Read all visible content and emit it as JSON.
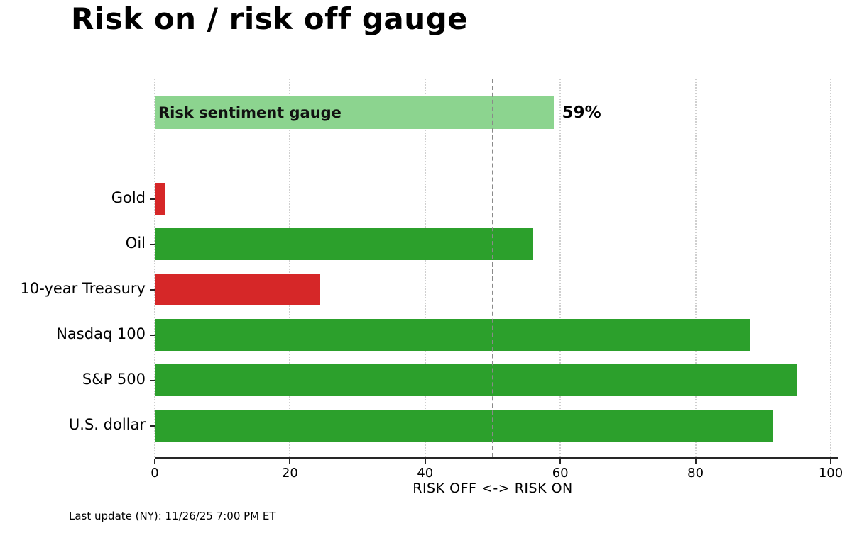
{
  "footer": {
    "text": "Last update (NY): 11/26/25 7:00 PM ET"
  },
  "colors": {
    "risk_on_green": "#2ca02c",
    "risk_off_red": "#d62728",
    "gauge_light_green": "#8cd48f",
    "grid": "#cfcfcf",
    "reference_line": "#8a8a8a",
    "axis": "#262626"
  },
  "chart_data": {
    "type": "bar",
    "orientation": "horizontal",
    "title": "Risk on / risk off gauge",
    "xlabel": "RISK OFF <-> RISK ON",
    "xlim": [
      0,
      100
    ],
    "xticks": [
      0,
      20,
      40,
      60,
      80,
      100
    ],
    "xtick_labels": [
      "0",
      "20",
      "40",
      "60",
      "80",
      "100"
    ],
    "grid": "dotted-vertical",
    "reference_line_x": 50,
    "gauge": {
      "label": "Risk sentiment gauge",
      "value": 59,
      "value_label": "59%",
      "color": "#8cd48f"
    },
    "categories": [
      "Gold",
      "Oil",
      "10-year Treasury",
      "Nasdaq 100",
      "S&P 500",
      "U.S. dollar"
    ],
    "values": [
      1.5,
      56,
      24.5,
      88,
      95,
      91.5
    ],
    "bar_colors": [
      "#d62728",
      "#2ca02c",
      "#d62728",
      "#2ca02c",
      "#2ca02c",
      "#2ca02c"
    ],
    "legend": null
  }
}
